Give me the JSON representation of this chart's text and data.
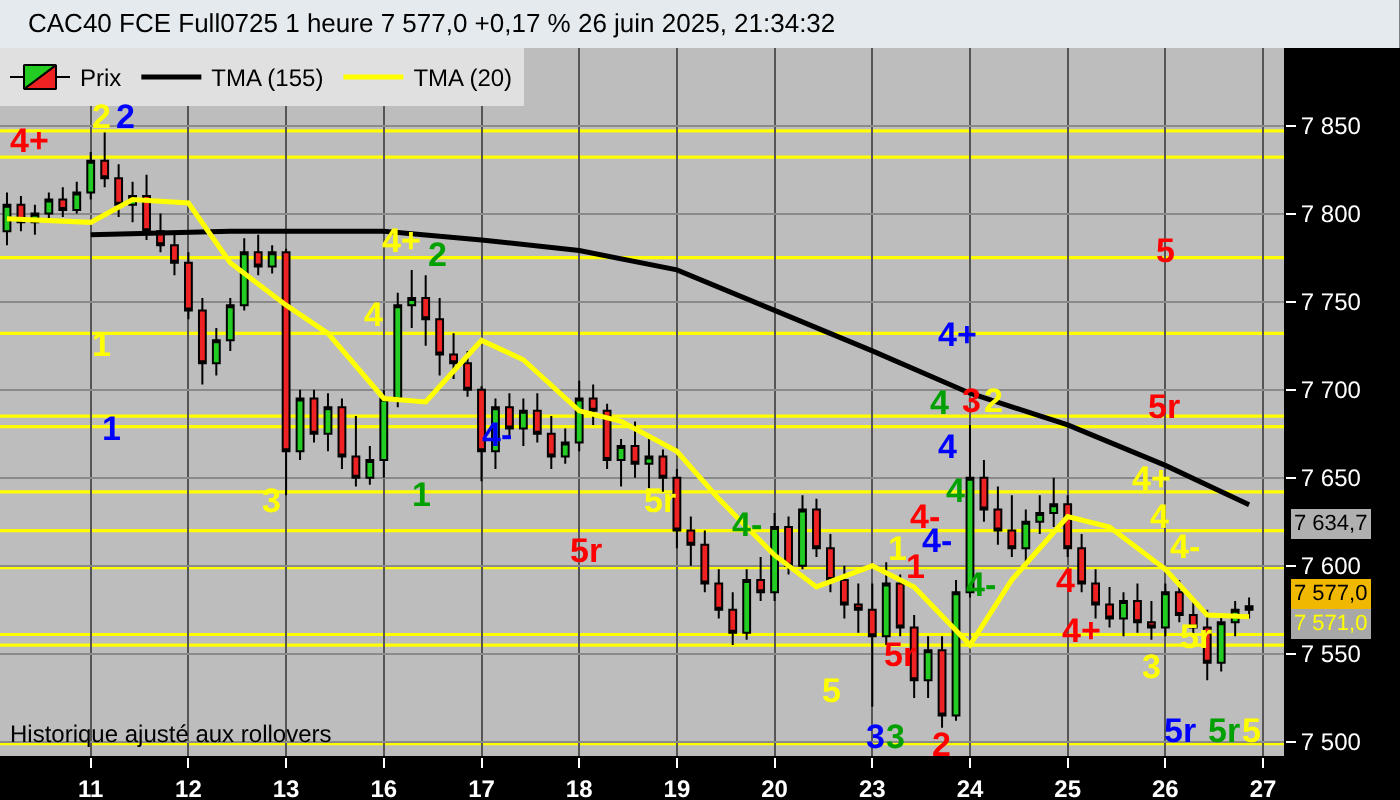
{
  "chart_data": {
    "type": "candlestick",
    "title": "CAC40 FCE Full0725 1 heure 7 577,0 +0,17 % 26 juin 2025, 21:34:32",
    "categories": [
      null,
      null,
      null,
      null,
      null,
      null,
      "11",
      null,
      null,
      null,
      null,
      null,
      null,
      "12",
      null,
      null,
      null,
      null,
      null,
      null,
      "13",
      null,
      null,
      null,
      null,
      null,
      null,
      "16",
      null,
      null,
      null,
      null,
      null,
      null,
      "17",
      null,
      null,
      null,
      null,
      null,
      null,
      "18",
      null,
      null,
      null,
      null,
      null,
      null,
      "19",
      null,
      null,
      null,
      null,
      null,
      null,
      "20",
      null,
      null,
      null,
      null,
      null,
      null,
      "23",
      null,
      null,
      null,
      null,
      null,
      null,
      "24",
      null,
      null,
      null,
      null,
      null,
      null,
      "25",
      null,
      null,
      null,
      null,
      null,
      null,
      "26",
      null,
      null,
      null,
      null,
      null,
      null,
      "27",
      null
    ],
    "series": [
      {
        "name": "Prix",
        "ohlc": [
          [
            7790,
            7812,
            7782,
            7805
          ],
          [
            7805,
            7810,
            7790,
            7795
          ],
          [
            7795,
            7805,
            7788,
            7800
          ],
          [
            7800,
            7812,
            7795,
            7808
          ],
          [
            7808,
            7815,
            7798,
            7802
          ],
          [
            7802,
            7818,
            7800,
            7812
          ],
          [
            7812,
            7835,
            7808,
            7830
          ],
          [
            7830,
            7846,
            7815,
            7820
          ],
          [
            7820,
            7828,
            7798,
            7805
          ],
          [
            7805,
            7818,
            7795,
            7810
          ],
          [
            7810,
            7822,
            7785,
            7790
          ],
          [
            7790,
            7800,
            7778,
            7782
          ],
          [
            7782,
            7790,
            7765,
            7772
          ],
          [
            7772,
            7778,
            7740,
            7745
          ],
          [
            7745,
            7752,
            7703,
            7715
          ],
          [
            7715,
            7735,
            7708,
            7728
          ],
          [
            7728,
            7752,
            7722,
            7748
          ],
          [
            7748,
            7786,
            7745,
            7778
          ],
          [
            7778,
            7788,
            7765,
            7770
          ],
          [
            7770,
            7782,
            7766,
            7778
          ],
          [
            7778,
            7780,
            7640,
            7665
          ],
          [
            7665,
            7700,
            7660,
            7695
          ],
          [
            7695,
            7700,
            7670,
            7675
          ],
          [
            7675,
            7698,
            7665,
            7690
          ],
          [
            7690,
            7695,
            7655,
            7662
          ],
          [
            7662,
            7685,
            7645,
            7650
          ],
          [
            7650,
            7668,
            7646,
            7660
          ],
          [
            7660,
            7700,
            7650,
            7695
          ],
          [
            7695,
            7755,
            7690,
            7748
          ],
          [
            7748,
            7768,
            7735,
            7752
          ],
          [
            7752,
            7765,
            7725,
            7740
          ],
          [
            7740,
            7752,
            7708,
            7720
          ],
          [
            7720,
            7732,
            7706,
            7715
          ],
          [
            7715,
            7722,
            7696,
            7700
          ],
          [
            7700,
            7702,
            7648,
            7665
          ],
          [
            7665,
            7695,
            7655,
            7690
          ],
          [
            7690,
            7698,
            7672,
            7678
          ],
          [
            7678,
            7695,
            7668,
            7688
          ],
          [
            7688,
            7698,
            7670,
            7675
          ],
          [
            7675,
            7685,
            7655,
            7662
          ],
          [
            7662,
            7678,
            7658,
            7670
          ],
          [
            7670,
            7705,
            7665,
            7695
          ],
          [
            7695,
            7703,
            7680,
            7688
          ],
          [
            7688,
            7692,
            7655,
            7660
          ],
          [
            7660,
            7672,
            7645,
            7668
          ],
          [
            7668,
            7682,
            7650,
            7658
          ],
          [
            7658,
            7672,
            7644,
            7662
          ],
          [
            7662,
            7666,
            7642,
            7650
          ],
          [
            7650,
            7655,
            7610,
            7620
          ],
          [
            7620,
            7628,
            7600,
            7612
          ],
          [
            7612,
            7620,
            7585,
            7590
          ],
          [
            7590,
            7598,
            7570,
            7575
          ],
          [
            7575,
            7585,
            7555,
            7562
          ],
          [
            7562,
            7598,
            7558,
            7592
          ],
          [
            7592,
            7605,
            7580,
            7585
          ],
          [
            7585,
            7630,
            7580,
            7622
          ],
          [
            7622,
            7628,
            7595,
            7600
          ],
          [
            7600,
            7640,
            7598,
            7632
          ],
          [
            7632,
            7638,
            7605,
            7610
          ],
          [
            7610,
            7618,
            7585,
            7592
          ],
          [
            7592,
            7600,
            7570,
            7578
          ],
          [
            7578,
            7590,
            7562,
            7575
          ],
          [
            7575,
            7590,
            7520,
            7560
          ],
          [
            7560,
            7602,
            7555,
            7590
          ],
          [
            7590,
            7595,
            7560,
            7565
          ],
          [
            7565,
            7572,
            7525,
            7535
          ],
          [
            7535,
            7560,
            7525,
            7552
          ],
          [
            7552,
            7560,
            7508,
            7515
          ],
          [
            7515,
            7592,
            7512,
            7585
          ],
          [
            7585,
            7680,
            7582,
            7650
          ],
          [
            7650,
            7660,
            7625,
            7632
          ],
          [
            7632,
            7645,
            7612,
            7620
          ],
          [
            7620,
            7640,
            7605,
            7610
          ],
          [
            7610,
            7632,
            7602,
            7625
          ],
          [
            7625,
            7640,
            7618,
            7630
          ],
          [
            7630,
            7650,
            7622,
            7635
          ],
          [
            7635,
            7640,
            7605,
            7610
          ],
          [
            7610,
            7618,
            7585,
            7590
          ],
          [
            7590,
            7598,
            7570,
            7578
          ],
          [
            7578,
            7588,
            7565,
            7570
          ],
          [
            7570,
            7585,
            7560,
            7580
          ],
          [
            7580,
            7590,
            7562,
            7568
          ],
          [
            7568,
            7580,
            7558,
            7565
          ],
          [
            7565,
            7590,
            7560,
            7585
          ],
          [
            7585,
            7592,
            7568,
            7572
          ],
          [
            7572,
            7582,
            7560,
            7565
          ],
          [
            7565,
            7575,
            7535,
            7545
          ],
          [
            7545,
            7572,
            7540,
            7568
          ],
          [
            7568,
            7580,
            7560,
            7575
          ],
          [
            7575,
            7582,
            7570,
            7577
          ],
          null,
          null
        ]
      },
      {
        "type": "line",
        "name": "TMA (155)",
        "color": "#000000",
        "values": [
          null,
          null,
          null,
          null,
          null,
          null,
          7788,
          null,
          null,
          null,
          null,
          null,
          null,
          null,
          null,
          null,
          7790,
          null,
          null,
          null,
          null,
          null,
          null,
          null,
          null,
          null,
          null,
          7790,
          null,
          null,
          null,
          null,
          null,
          null,
          7785,
          null,
          null,
          null,
          null,
          null,
          null,
          7779,
          null,
          null,
          null,
          null,
          null,
          null,
          7768,
          null,
          null,
          null,
          null,
          null,
          null,
          7745,
          null,
          null,
          null,
          null,
          null,
          null,
          7722,
          null,
          null,
          null,
          null,
          null,
          null,
          7698,
          null,
          null,
          null,
          null,
          null,
          null,
          7680,
          null,
          null,
          null,
          null,
          null,
          null,
          7657,
          null,
          null,
          null,
          null,
          null,
          7634.7,
          null,
          null
        ]
      },
      {
        "type": "line",
        "name": "TMA (20)",
        "color": "#ffff00",
        "values": [
          7797,
          null,
          null,
          null,
          null,
          null,
          7795,
          null,
          null,
          7808,
          null,
          null,
          null,
          7806,
          null,
          null,
          7772,
          null,
          null,
          null,
          7748,
          null,
          null,
          7732,
          null,
          null,
          null,
          7695,
          null,
          null,
          7693,
          null,
          null,
          null,
          7728,
          null,
          null,
          7717,
          null,
          null,
          null,
          7688,
          null,
          null,
          7682,
          null,
          null,
          null,
          7665,
          null,
          null,
          7638,
          null,
          null,
          null,
          7606,
          null,
          null,
          7588,
          null,
          null,
          null,
          7600,
          null,
          null,
          7588,
          null,
          null,
          null,
          7555,
          null,
          null,
          7592,
          null,
          null,
          null,
          7628,
          null,
          null,
          7622,
          null,
          null,
          null,
          7598,
          null,
          null,
          7572,
          null,
          null,
          7571,
          null,
          null
        ]
      }
    ],
    "ylim": [
      7492,
      7894
    ],
    "yticks": [
      {
        "value": 7500,
        "label": "7 500"
      },
      {
        "value": 7550,
        "label": "7 550"
      },
      {
        "value": 7600,
        "label": "7 600"
      },
      {
        "value": 7650,
        "label": "7 650"
      },
      {
        "value": 7700,
        "label": "7 700"
      },
      {
        "value": 7750,
        "label": "7 750"
      },
      {
        "value": 7800,
        "label": "7 800"
      },
      {
        "value": 7850,
        "label": "7 850"
      }
    ],
    "grid": true,
    "legend": "top left",
    "ref_lines": [
      {
        "axis": "y",
        "value": 7847,
        "color": "#ffff00"
      },
      {
        "axis": "y",
        "value": 7832,
        "color": "#ffff00"
      },
      {
        "axis": "y",
        "value": 7775,
        "color": "#ffff00"
      },
      {
        "axis": "y",
        "value": 7732,
        "color": "#ffff00"
      },
      {
        "axis": "y",
        "value": 7685,
        "color": "#ffff00"
      },
      {
        "axis": "y",
        "value": 7679,
        "color": "#ffff00"
      },
      {
        "axis": "y",
        "value": 7642,
        "color": "#ffff00"
      },
      {
        "axis": "y",
        "value": 7620,
        "color": "#ffff00"
      },
      {
        "axis": "y",
        "value": 7599,
        "color": "#ffff00"
      },
      {
        "axis": "y",
        "value": 7561,
        "color": "#ffff00"
      },
      {
        "axis": "y",
        "value": 7555,
        "color": "#ffff00"
      },
      {
        "axis": "y",
        "value": 7499,
        "color": "#ffff00"
      }
    ],
    "annotations": [
      "Historique ajusté aux rollovers",
      "7 634,7",
      "7 577,0",
      "7 571,0",
      "4+",
      "2",
      "2",
      "1",
      "1",
      "3",
      "4",
      "4+",
      "2",
      "1",
      "4-",
      "5r",
      "5r",
      "4-",
      "5",
      "3",
      "3",
      "5r",
      "1",
      "2",
      "4+",
      "4",
      "4",
      "3",
      "2",
      "4",
      "4-",
      "4-",
      "1",
      "4-",
      "4",
      "4+",
      "5",
      "5r",
      "4+",
      "4",
      "4-",
      "3",
      "5r",
      "5r",
      "5r",
      "5"
    ]
  }
}
